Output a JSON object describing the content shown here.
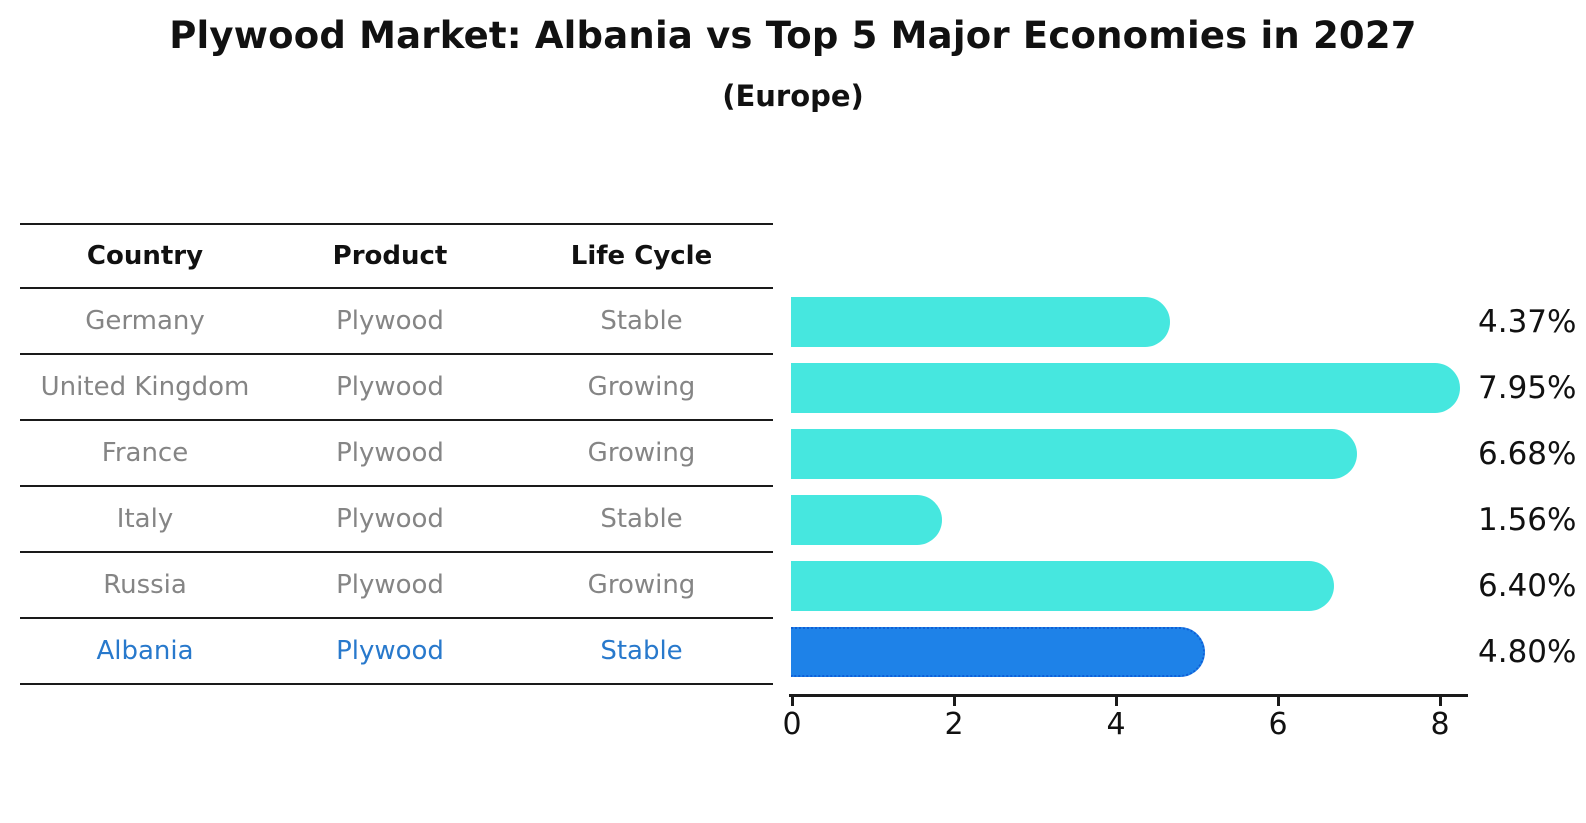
{
  "title": "Plywood Market: Albania vs Top 5 Major Economies in 2027",
  "subtitle": "(Europe)",
  "table": {
    "headers": {
      "country": "Country",
      "product": "Product",
      "life_cycle": "Life Cycle"
    }
  },
  "chart_data": {
    "type": "bar",
    "orientation": "horizontal",
    "title": "Plywood Market: Albania vs Top 5 Major Economies in 2027",
    "subtitle": "(Europe)",
    "xlabel": "",
    "ylabel": "",
    "xlim": [
      0,
      8.4
    ],
    "xticks": [
      0,
      2,
      4,
      6,
      8
    ],
    "grid": false,
    "legend": false,
    "rows": [
      {
        "country": "Germany",
        "product": "Plywood",
        "life_cycle": "Stable",
        "value": 4.37,
        "value_label": "4.37%",
        "highlight": false
      },
      {
        "country": "United Kingdom",
        "product": "Plywood",
        "life_cycle": "Growing",
        "value": 7.95,
        "value_label": "7.95%",
        "highlight": false
      },
      {
        "country": "France",
        "product": "Plywood",
        "life_cycle": "Growing",
        "value": 6.68,
        "value_label": "6.68%",
        "highlight": false
      },
      {
        "country": "Italy",
        "product": "Plywood",
        "life_cycle": "Stable",
        "value": 1.56,
        "value_label": "1.56%",
        "highlight": false
      },
      {
        "country": "Russia",
        "product": "Plywood",
        "life_cycle": "Growing",
        "value": 6.4,
        "value_label": "6.40%",
        "highlight": false
      },
      {
        "country": "Albania",
        "product": "Plywood",
        "life_cycle": "Stable",
        "value": 4.8,
        "value_label": "4.80%",
        "highlight": true
      }
    ],
    "colors": {
      "bar": "#46E7DF",
      "highlight_bar": "#1E82E8",
      "highlight_bar_border": "#0F5FD7",
      "row_text": "#858585",
      "highlight_row_text": "#2879CC",
      "axis": "#1a1a1a",
      "title_text": "#111111"
    }
  }
}
